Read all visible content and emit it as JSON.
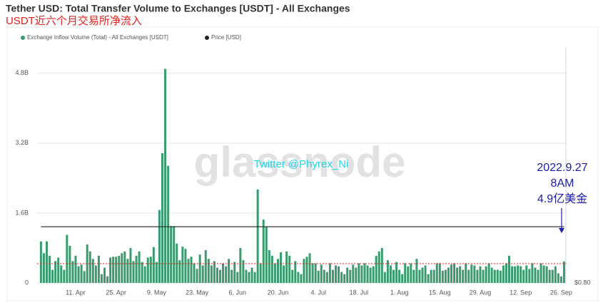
{
  "chart_data": {
    "type": "bar",
    "title": "Tether USD: Total Transfer Volume to Exchanges [USDT] - All Exchanges",
    "subtitle": "USDT近六个月交易所净流入",
    "categories": [
      null,
      null,
      null,
      null,
      null,
      null,
      null,
      null,
      null,
      null,
      null,
      null,
      "11. Apr",
      null,
      null,
      null,
      null,
      null,
      null,
      null,
      null,
      null,
      null,
      null,
      null,
      null,
      "25. Apr",
      null,
      null,
      null,
      null,
      null,
      null,
      null,
      null,
      null,
      null,
      null,
      null,
      null,
      "9. May",
      null,
      null,
      null,
      null,
      null,
      null,
      null,
      null,
      null,
      null,
      null,
      null,
      null,
      "23. May",
      null,
      null,
      null,
      null,
      null,
      null,
      null,
      null,
      null,
      null,
      null,
      null,
      null,
      "6. Jun",
      null,
      null,
      null,
      null,
      null,
      null,
      null,
      null,
      null,
      null,
      null,
      null,
      null,
      "20. Jun",
      null,
      null,
      null,
      null,
      null,
      null,
      null,
      null,
      null,
      null,
      null,
      null,
      null,
      "4. Jul",
      null,
      null,
      null,
      null,
      null,
      null,
      null,
      null,
      null,
      null,
      null,
      null,
      null,
      "18. Jul",
      null,
      null,
      null,
      null,
      null,
      null,
      null,
      null,
      null,
      null,
      null,
      null,
      null,
      "1. Aug",
      null,
      null,
      null,
      null,
      null,
      null,
      null,
      null,
      null,
      null,
      null,
      null,
      null,
      "15. Aug",
      null,
      null,
      null,
      null,
      null,
      null,
      null,
      null,
      null,
      null,
      null,
      null,
      null,
      "29. Aug",
      null,
      null,
      null,
      null,
      null,
      null,
      null,
      null,
      null,
      null,
      null,
      null,
      null,
      "12. Sep",
      null,
      null,
      null,
      null,
      null,
      null,
      null,
      null,
      null,
      null,
      null,
      null,
      null,
      "26. Sep",
      null
    ],
    "series": [
      {
        "name": "Exchange Inflow Volume (Total) - All Exchanges [USDT]",
        "color": "#3a9c6e",
        "values": [
          0.95,
          0.68,
          0.95,
          0.62,
          0.3,
          0.5,
          0.58,
          0.4,
          0.3,
          1.1,
          0.85,
          0.5,
          0.62,
          0.38,
          0.42,
          0.27,
          0.88,
          0.72,
          0.55,
          0.4,
          0.62,
          0.2,
          0.35,
          0.15,
          0.58,
          0.6,
          0.6,
          0.62,
          0.68,
          0.72,
          0.55,
          0.8,
          0.5,
          0.62,
          0.72,
          0.48,
          0.38,
          0.58,
          0.6,
          0.82,
          0.48,
          1.67,
          2.97,
          4.9,
          2.68,
          1.3,
          1.3,
          0.9,
          0.52,
          0.83,
          0.78,
          0.55,
          0.6,
          0.45,
          0.32,
          0.65,
          0.4,
          0.75,
          0.55,
          0.4,
          0.5,
          0.35,
          0.3,
          0.45,
          0.38,
          0.55,
          0.3,
          0.48,
          0.25,
          0.8,
          0.52,
          0.3,
          0.25,
          0.35,
          0.25,
          2.14,
          0.45,
          1.45,
          1.29,
          0.75,
          0.62,
          0.45,
          0.55,
          0.7,
          0.4,
          0.72,
          0.62,
          0.3,
          0.5,
          0.25,
          0.2,
          0.55,
          0.6,
          0.68,
          0.45,
          0.45,
          0.28,
          0.42,
          0.3,
          0.25,
          0.45,
          0.3,
          0.4,
          0.38,
          0.25,
          0.2,
          0.35,
          0.3,
          0.42,
          0.35,
          0.45,
          0.4,
          0.45,
          0.4,
          0.35,
          0.38,
          0.62,
          0.72,
          0.8,
          0.25,
          0.52,
          0.4,
          0.3,
          0.48,
          0.3,
          0.2,
          0.45,
          0.38,
          0.45,
          0.3,
          0.55,
          0.3,
          0.35,
          0.4,
          0.2,
          0.3,
          0.3,
          0.45,
          0.45,
          0.28,
          0.3,
          0.35,
          0.42,
          0.45,
          0.35,
          0.38,
          0.3,
          0.45,
          0.3,
          0.42,
          0.4,
          0.3,
          0.38,
          0.3,
          0.38,
          0.45,
          0.35,
          0.3,
          0.3,
          0.28,
          0.4,
          0.45,
          0.62,
          0.38,
          0.38,
          0.4,
          0.38,
          0.3,
          0.4,
          0.32,
          0.45,
          0.35,
          0.3,
          0.45,
          0.4,
          0.38,
          0.3,
          0.3,
          0.38,
          0.22,
          0.15,
          0.49
        ]
      },
      {
        "name": "Price [USD]",
        "color": "#222222",
        "axis": "y2",
        "values": [
          1,
          1,
          1,
          1,
          1,
          1,
          1,
          1,
          1,
          1,
          1,
          1,
          1,
          1,
          1,
          1,
          1,
          1,
          1,
          1,
          1,
          1,
          1,
          1,
          1,
          1,
          1,
          1,
          1,
          1,
          1,
          1,
          1,
          1,
          1,
          1,
          1,
          1,
          1,
          1,
          1,
          1,
          1,
          1,
          1,
          1,
          1,
          1,
          1,
          1,
          1,
          1,
          1,
          1,
          1,
          1,
          1,
          1,
          1,
          1,
          1,
          1,
          1,
          1,
          1,
          1,
          1,
          1,
          1,
          1,
          1,
          1,
          1,
          1,
          1,
          1,
          1,
          1,
          1,
          1,
          1,
          1,
          1,
          1,
          1,
          1,
          1,
          1,
          1,
          1,
          1,
          1,
          1,
          1,
          1,
          1,
          1,
          1,
          1,
          1,
          1,
          1,
          1,
          1,
          1,
          1,
          1,
          1,
          1,
          1,
          1,
          1,
          1,
          1,
          1,
          1,
          1,
          1,
          1,
          1,
          1,
          1,
          1,
          1,
          1,
          1,
          1,
          1,
          1,
          1,
          1,
          1,
          1,
          1,
          1,
          1,
          1,
          1,
          1,
          1,
          1,
          1,
          1,
          1,
          1,
          1,
          1,
          1,
          1,
          1,
          1,
          1,
          1,
          1,
          1,
          1,
          1,
          1,
          1,
          1,
          1,
          1,
          1,
          1,
          1,
          1,
          1,
          1,
          1,
          1,
          1,
          1,
          1,
          1,
          1,
          1,
          1,
          1,
          1,
          1,
          1,
          1
        ]
      }
    ],
    "ylim": [
      0,
      5.4
    ],
    "yticks": [
      0,
      {
        "value": 1.6,
        "label": "1.6B"
      },
      {
        "value": 3.2,
        "label": "3.2B"
      },
      {
        "value": 4.8,
        "label": "4.8B"
      }
    ],
    "y2lim": [
      0.8,
      1.64
    ],
    "y2ticks": [
      {
        "value": 0.8,
        "label": "$0.80"
      }
    ],
    "ref_line": 0.44,
    "grid": true,
    "annotations": [
      "2022.9.27",
      "8AM",
      "4.9亿美金"
    ],
    "watermark": "glassnode",
    "credit": "Twitter @Phyrex_Ni"
  }
}
